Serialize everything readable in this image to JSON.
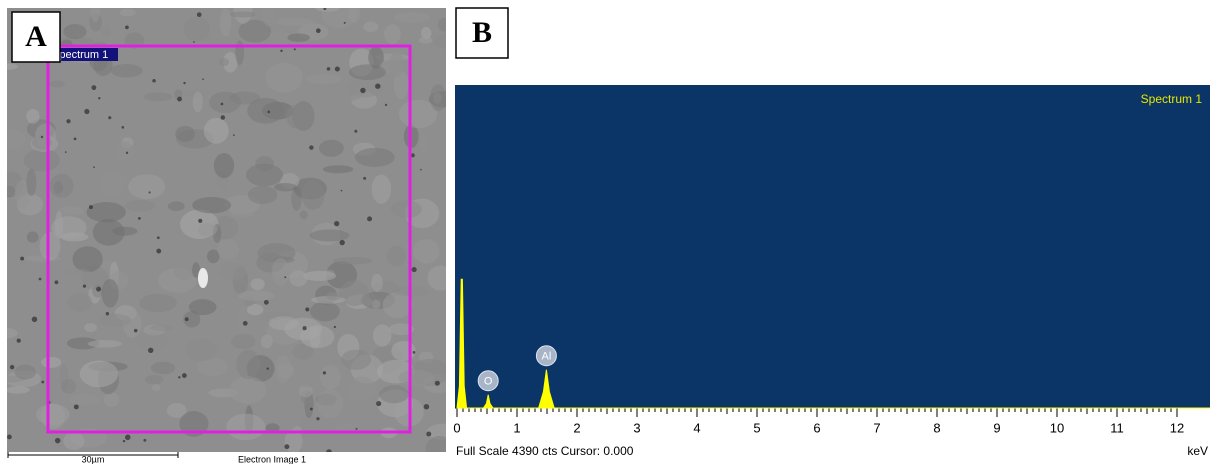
{
  "panel_a": {
    "label": "A",
    "region_label": "Spectrum 1",
    "scale_bar": "30µm",
    "caption": "Electron Image 1"
  },
  "chart_data": {
    "type": "area",
    "panel_label": "B",
    "title": "Spectrum 1",
    "status": "Full Scale 4390 cts Cursor: 0.000",
    "xlabel": "keV",
    "x": [
      0,
      0.04,
      0.07,
      0.09,
      0.12,
      0.16,
      0.44,
      0.49,
      0.52,
      0.55,
      0.6,
      1.36,
      1.44,
      1.49,
      1.54,
      1.62,
      12.55
    ],
    "values": [
      0,
      300,
      1750,
      1750,
      300,
      0,
      0,
      60,
      180,
      60,
      0,
      0,
      220,
      520,
      220,
      0,
      0
    ],
    "color": "#ffff00",
    "background": "#0b3566",
    "annotations": [
      {
        "text": "O",
        "x": 0.52
      },
      {
        "text": "Al",
        "x": 1.49
      }
    ],
    "xlim": [
      0,
      12.55
    ],
    "ylim": [
      0,
      4390
    ],
    "xticks": [
      0,
      1,
      2,
      3,
      4,
      5,
      6,
      7,
      8,
      9,
      10,
      11,
      12
    ]
  }
}
